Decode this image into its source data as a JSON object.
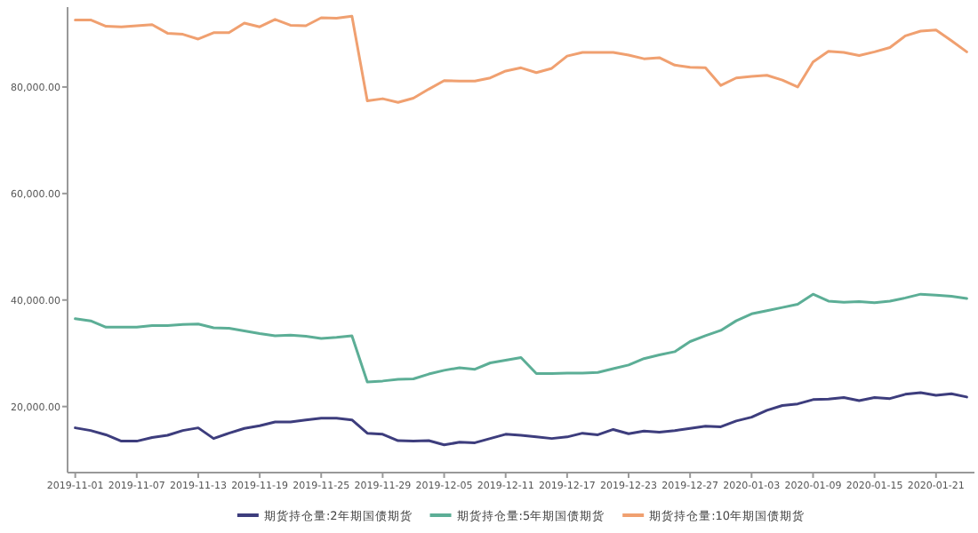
{
  "chart_data": {
    "type": "line",
    "categories": [
      "2019-11-01",
      null,
      null,
      null,
      "2019-11-07",
      null,
      null,
      null,
      "2019-11-13",
      null,
      null,
      null,
      "2019-11-19",
      null,
      null,
      null,
      "2019-11-25",
      null,
      null,
      null,
      "2019-11-29",
      null,
      null,
      null,
      "2019-12-05",
      null,
      null,
      null,
      "2019-12-11",
      null,
      null,
      null,
      "2019-12-17",
      null,
      null,
      null,
      "2019-12-23",
      null,
      null,
      null,
      "2019-12-27",
      null,
      null,
      null,
      "2020-01-03",
      null,
      null,
      null,
      "2020-01-09",
      null,
      null,
      null,
      "2020-01-15",
      null,
      null,
      null,
      "2020-01-21",
      null,
      null
    ],
    "series": [
      {
        "name": "期货持仓量:2年期国债期货",
        "color": "#3d3d7d",
        "values": [
          16000,
          15500,
          14700,
          13500,
          13500,
          14200,
          14600,
          15500,
          16000,
          14000,
          15000,
          15900,
          16400,
          17100,
          17100,
          17500,
          17800,
          17800,
          17500,
          15000,
          14800,
          13600,
          13500,
          13600,
          12800,
          13300,
          13200,
          14000,
          14800,
          14600,
          14300,
          14000,
          14300,
          15000,
          14700,
          15700,
          14900,
          15400,
          15200,
          15500,
          15900,
          16300,
          16200,
          17300,
          18000,
          19300,
          20200,
          20500,
          21300,
          21400,
          21700,
          21100,
          21700,
          21500,
          22300,
          22600,
          22100,
          22400,
          21800
        ]
      },
      {
        "name": "期货持仓量:5年期国债期货",
        "color": "#5cae96",
        "values": [
          36500,
          36100,
          34900,
          34900,
          34900,
          35200,
          35200,
          35400,
          35500,
          34800,
          34700,
          34200,
          33700,
          33300,
          33400,
          33200,
          32800,
          33000,
          33300,
          24600,
          24800,
          25100,
          25200,
          26100,
          26800,
          27300,
          27000,
          28200,
          28700,
          29200,
          26200,
          26200,
          26300,
          26300,
          26400,
          27100,
          27800,
          29000,
          29700,
          30300,
          32200,
          33300,
          34300,
          36100,
          37400,
          38000,
          38600,
          39200,
          41100,
          39800,
          39600,
          39700,
          39500,
          39800,
          40400,
          41100,
          40900,
          40700,
          40300
        ]
      },
      {
        "name": "期货持仓量:10年期国债期货",
        "color": "#f0a070",
        "values": [
          92600,
          92600,
          91400,
          91300,
          91500,
          91700,
          90100,
          89900,
          89000,
          90200,
          90200,
          92000,
          91300,
          92700,
          91600,
          91500,
          93000,
          92900,
          93300,
          77400,
          77800,
          77100,
          77900,
          79600,
          81200,
          81100,
          81100,
          81700,
          83000,
          83600,
          82700,
          83500,
          85800,
          86500,
          86500,
          86500,
          86000,
          85300,
          85500,
          84100,
          83700,
          83600,
          80300,
          81700,
          82000,
          82200,
          81300,
          80000,
          84700,
          86700,
          86500,
          85900,
          86600,
          87400,
          89600,
          90500,
          90700,
          88700,
          86600
        ]
      }
    ],
    "ylim": [
      7600,
      95000
    ],
    "yticks": [
      {
        "value": 20000,
        "label": "20,000.00"
      },
      {
        "value": 40000,
        "label": "40,000.00"
      },
      {
        "value": 60000,
        "label": "60,000.00"
      },
      {
        "value": 80000,
        "label": "80,000.00"
      }
    ],
    "legend": "bottom",
    "grid": false,
    "marker": "none",
    "line_style": "solid"
  }
}
